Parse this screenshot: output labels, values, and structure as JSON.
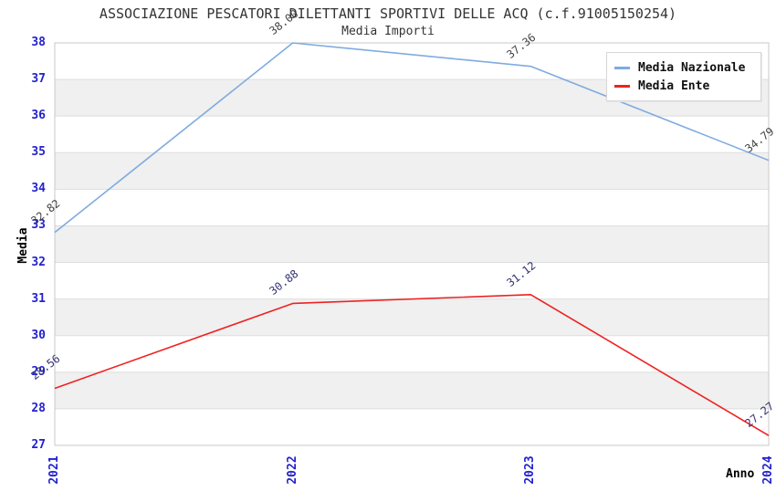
{
  "chart_data": {
    "type": "line",
    "title": "ASSOCIAZIONE PESCATORI DILETTANTI SPORTIVI DELLE ACQ (c.f.91005150254)",
    "subtitle": "Media Importi",
    "xlabel": "Anno",
    "ylabel": "Media",
    "categories": [
      "2021",
      "2022",
      "2023",
      "2024"
    ],
    "ylim": [
      27,
      38
    ],
    "ytick_step": 1,
    "grid": "horizontal-bands-alternating",
    "legend_position": "top-right",
    "series": [
      {
        "name": "Media Nazionale",
        "color": "#7fabe0",
        "label_color": "#444444",
        "values": [
          32.82,
          38.0,
          37.36,
          34.79
        ],
        "labels": [
          "32.82",
          "38.00",
          "37.36",
          "34.79"
        ]
      },
      {
        "name": "Media Ente",
        "color": "#ee2222",
        "label_color": "#333377",
        "values": [
          28.56,
          30.88,
          31.12,
          27.27
        ],
        "labels": [
          "28.56",
          "30.88",
          "31.12",
          "27.27"
        ]
      }
    ],
    "colors": {
      "tick": "#2222cc",
      "band": "#f0f0f0",
      "grid": "#dddddd",
      "border": "#c8c8c8",
      "title": "#333333",
      "axis_title": "#000000",
      "background": "#ffffff"
    }
  }
}
